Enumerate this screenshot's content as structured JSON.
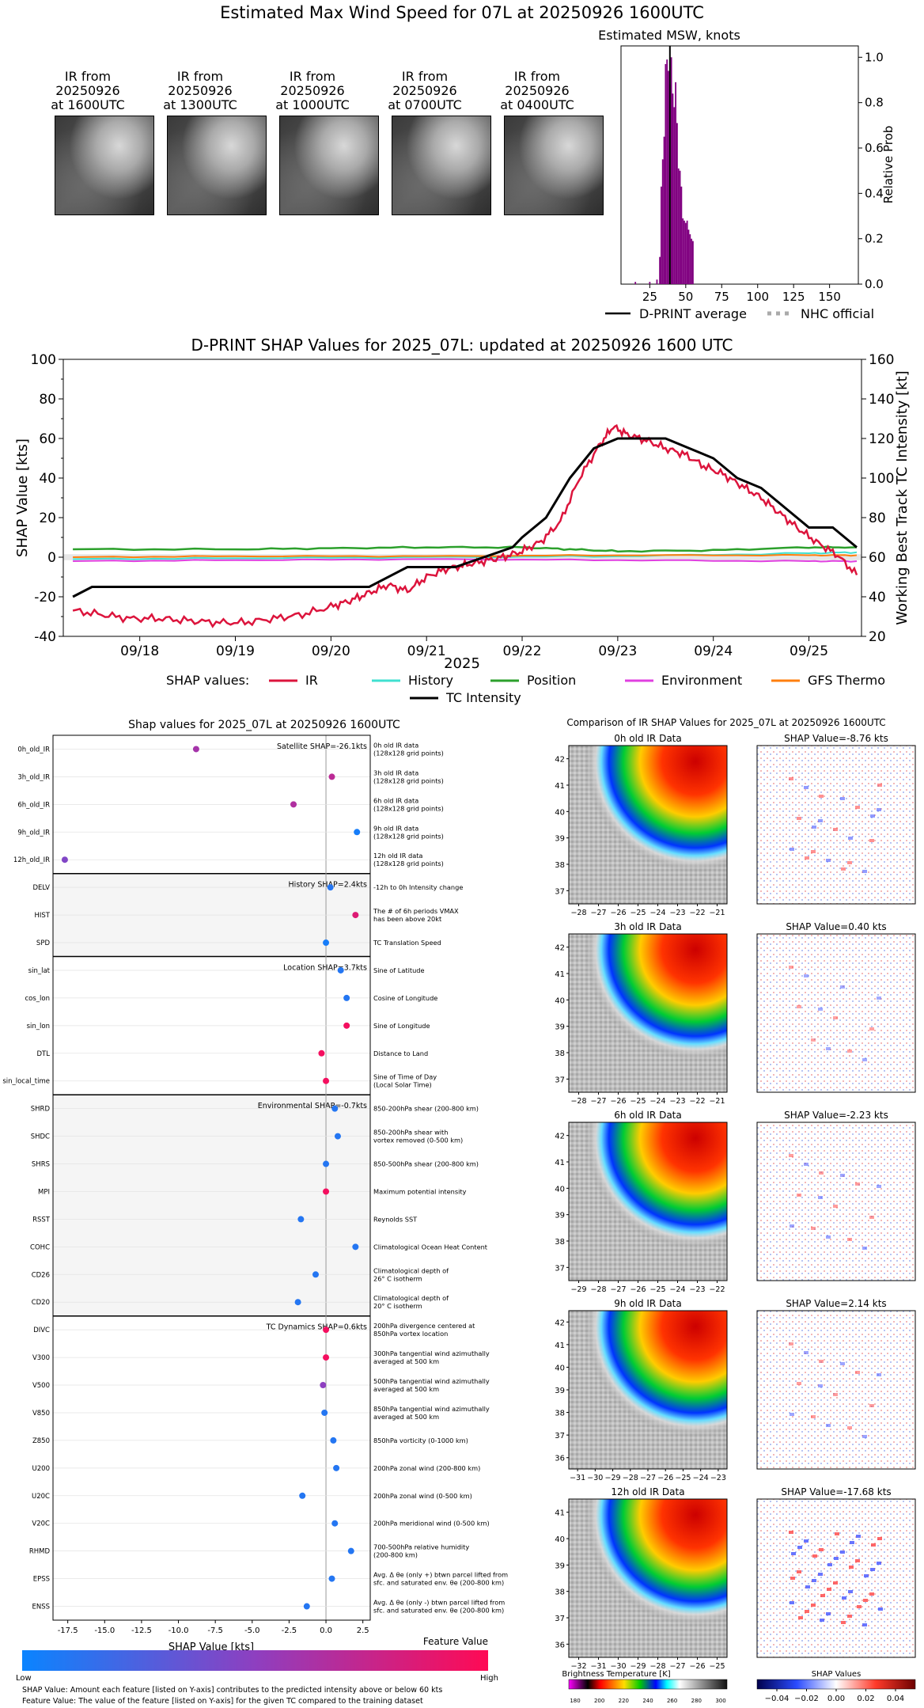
{
  "main_title": "Estimated Max Wind Speed for 07L at 20250926 1600UTC",
  "ir_thumbnails": [
    {
      "line1": "IR from",
      "line2": "20250926",
      "line3": "at 1600UTC"
    },
    {
      "line1": "IR from",
      "line2": "20250926",
      "line3": "at 1300UTC"
    },
    {
      "line1": "IR from",
      "line2": "20250926",
      "line3": "at 1000UTC"
    },
    {
      "line1": "IR from",
      "line2": "20250926",
      "line3": "at 0700UTC"
    },
    {
      "line1": "IR from",
      "line2": "20250926",
      "line3": "at 0400UTC"
    }
  ],
  "colors": {
    "ir": "#dc143c",
    "history": "#40e0d0",
    "position": "#2ca02c",
    "environment": "#e040e0",
    "gfs_thermo": "#ff7f0e",
    "tc_intensity": "#000000",
    "histogram": "#800080",
    "low_end": "#0a84ff",
    "high_end": "#ff0a54",
    "panel_shade": "#f5f5f5"
  },
  "chart_data": [
    {
      "type": "bar",
      "title": "Estimated MSW, knots",
      "ylabel": "Relative Prob",
      "xticks": [
        "25",
        "50",
        "75",
        "100",
        "125",
        "150"
      ],
      "yticks": [
        "0.0",
        "0.2",
        "0.4",
        "0.6",
        "0.8",
        "1.0"
      ],
      "xlim": [
        5,
        170
      ],
      "ylim": [
        0,
        1.05
      ],
      "bins": [
        {
          "x": 15,
          "v": 0.01
        },
        {
          "x": 25,
          "v": 0.01
        },
        {
          "x": 30,
          "v": 0.02
        },
        {
          "x": 32,
          "v": 0.12
        },
        {
          "x": 33,
          "v": 0.43
        },
        {
          "x": 34,
          "v": 0.55
        },
        {
          "x": 35,
          "v": 0.65
        },
        {
          "x": 36,
          "v": 0.97
        },
        {
          "x": 37,
          "v": 0.99
        },
        {
          "x": 38,
          "v": 0.94
        },
        {
          "x": 39,
          "v": 0.88
        },
        {
          "x": 40,
          "v": 1.0
        },
        {
          "x": 41,
          "v": 0.84
        },
        {
          "x": 42,
          "v": 0.78
        },
        {
          "x": 43,
          "v": 0.89
        },
        {
          "x": 44,
          "v": 0.71
        },
        {
          "x": 45,
          "v": 0.51
        },
        {
          "x": 46,
          "v": 0.5
        },
        {
          "x": 47,
          "v": 0.43
        },
        {
          "x": 48,
          "v": 0.29
        },
        {
          "x": 49,
          "v": 0.28
        },
        {
          "x": 50,
          "v": 0.27
        },
        {
          "x": 51,
          "v": 0.28
        },
        {
          "x": 52,
          "v": 0.24
        },
        {
          "x": 53,
          "v": 0.22
        },
        {
          "x": 54,
          "v": 0.2
        },
        {
          "x": 55,
          "v": 0.19
        }
      ],
      "dprint_average": 39,
      "legend": [
        {
          "label": "D-PRINT average",
          "style": "solid"
        },
        {
          "label": "NHC official",
          "style": "dotted"
        }
      ]
    },
    {
      "type": "line",
      "title": "D-PRINT SHAP Values for 2025_07L: updated at 20250926 1600 UTC",
      "ylabel": "SHAP Value [kts]",
      "y2label": "Working Best Track TC Intensity [kt]",
      "xlabel": "2025",
      "xticks": [
        "09/18",
        "09/19",
        "09/20",
        "09/21",
        "09/22",
        "09/23",
        "09/24",
        "09/25"
      ],
      "yticks": [
        "-40",
        "-20",
        "0",
        "20",
        "40",
        "60",
        "80",
        "100"
      ],
      "y2ticks": [
        "20",
        "40",
        "60",
        "80",
        "100",
        "120",
        "140",
        "160"
      ],
      "xlim": [
        17.2,
        25.55
      ],
      "ylim": [
        -40,
        100
      ],
      "y2lim": [
        20,
        160
      ],
      "ir": [
        [
          17.3,
          -27
        ],
        [
          17.6,
          -29
        ],
        [
          17.9,
          -31
        ],
        [
          18.2,
          -31
        ],
        [
          18.5,
          -32
        ],
        [
          18.8,
          -33
        ],
        [
          19.1,
          -33
        ],
        [
          19.4,
          -31
        ],
        [
          19.7,
          -29
        ],
        [
          20.0,
          -25
        ],
        [
          20.2,
          -22
        ],
        [
          20.4,
          -18
        ],
        [
          20.6,
          -14
        ],
        [
          20.8,
          -17
        ],
        [
          21.0,
          -10
        ],
        [
          21.2,
          -6
        ],
        [
          21.4,
          -4
        ],
        [
          21.6,
          -2
        ],
        [
          21.8,
          0
        ],
        [
          22.0,
          3
        ],
        [
          22.2,
          8
        ],
        [
          22.4,
          18
        ],
        [
          22.6,
          40
        ],
        [
          22.8,
          56
        ],
        [
          22.95,
          66
        ],
        [
          23.1,
          62
        ],
        [
          23.3,
          59
        ],
        [
          23.5,
          55
        ],
        [
          23.7,
          52
        ],
        [
          23.9,
          46
        ],
        [
          24.1,
          42
        ],
        [
          24.3,
          36
        ],
        [
          24.5,
          30
        ],
        [
          24.7,
          22
        ],
        [
          24.9,
          14
        ],
        [
          25.1,
          7
        ],
        [
          25.3,
          1
        ],
        [
          25.5,
          -9
        ]
      ],
      "history": [
        [
          17.3,
          -1
        ],
        [
          19.0,
          -0.5
        ],
        [
          21.0,
          0
        ],
        [
          23.0,
          0.5
        ],
        [
          25.0,
          2
        ],
        [
          25.5,
          2.5
        ]
      ],
      "position": [
        [
          17.3,
          4
        ],
        [
          19.0,
          4
        ],
        [
          20.0,
          4.5
        ],
        [
          21.0,
          5
        ],
        [
          22.0,
          5
        ],
        [
          22.5,
          4
        ],
        [
          23.0,
          3
        ],
        [
          24.0,
          3.5
        ],
        [
          25.0,
          5
        ],
        [
          25.5,
          5
        ]
      ],
      "environment": [
        [
          17.3,
          -2
        ],
        [
          19.0,
          -1.5
        ],
        [
          21.0,
          -1
        ],
        [
          23.0,
          -1.5
        ],
        [
          25.0,
          -2
        ],
        [
          25.5,
          -2
        ]
      ],
      "gfs_thermo": [
        [
          17.3,
          0
        ],
        [
          19.0,
          0.5
        ],
        [
          21.0,
          0.5
        ],
        [
          23.0,
          1
        ],
        [
          25.0,
          1
        ],
        [
          25.5,
          1
        ]
      ],
      "tc_intensity": [
        [
          17.3,
          40
        ],
        [
          17.5,
          45
        ],
        [
          20.4,
          45
        ],
        [
          20.8,
          55
        ],
        [
          21.3,
          55
        ],
        [
          21.6,
          60
        ],
        [
          21.9,
          65
        ],
        [
          22.0,
          70
        ],
        [
          22.25,
          80
        ],
        [
          22.5,
          100
        ],
        [
          22.75,
          115
        ],
        [
          23.0,
          120
        ],
        [
          23.5,
          120
        ],
        [
          23.75,
          115
        ],
        [
          24.0,
          110
        ],
        [
          24.25,
          100
        ],
        [
          24.5,
          95
        ],
        [
          24.75,
          85
        ],
        [
          25.0,
          75
        ],
        [
          25.25,
          75
        ],
        [
          25.5,
          65
        ]
      ],
      "legend_title": "SHAP values:",
      "legend": [
        "IR",
        "History",
        "Position",
        "Environment",
        "GFS Thermo",
        "TC Intensity"
      ]
    },
    {
      "type": "scatter",
      "title": "Shap values for 2025_07L at 20250926 1600UTC",
      "xlabel": "SHAP Value [kts]",
      "xticks": [
        "-17.5",
        "-15.0",
        "-12.5",
        "-10.0",
        "-7.5",
        "-5.0",
        "-2.5",
        "0.0",
        "2.5"
      ],
      "xlim": [
        -18.5,
        3.0
      ],
      "group_labels": [
        "Satellite SHAP=-26.1kts",
        "History SHAP=2.4kts",
        "Location SHAP=3.7kts",
        "Environmental SHAP=-0.7kts",
        "TC Dynamics SHAP=0.6kts"
      ],
      "features": [
        {
          "name": "0h_old_IR",
          "desc": "0h old IR data\n(128x128 grid points)",
          "x": -8.8,
          "f": 0.6,
          "g": 0
        },
        {
          "name": "3h_old_IR",
          "desc": "3h old IR data\n(128x128 grid points)",
          "x": 0.4,
          "f": 0.7,
          "g": 0
        },
        {
          "name": "6h_old_IR",
          "desc": "6h old IR data\n(128x128 grid points)",
          "x": -2.2,
          "f": 0.65,
          "g": 0
        },
        {
          "name": "9h_old_IR",
          "desc": "9h old IR data\n(128x128 grid points)",
          "x": 2.1,
          "f": 0.05,
          "g": 0
        },
        {
          "name": "12h_old_IR",
          "desc": "12h old IR data\n(128x128 grid points)",
          "x": -17.7,
          "f": 0.45,
          "g": 0
        },
        {
          "name": "DELV",
          "desc": "-12h to 0h Intensity change",
          "x": 0.3,
          "f": 0.1,
          "g": 1
        },
        {
          "name": "HIST",
          "desc": "The # of 6h periods VMAX\nhas been above 20kt",
          "x": 2.0,
          "f": 0.85,
          "g": 1
        },
        {
          "name": "SPD",
          "desc": "TC Translation Speed",
          "x": 0.0,
          "f": 0.05,
          "g": 1
        },
        {
          "name": "sin_lat",
          "desc": "Sine of Latitude",
          "x": 1.0,
          "f": 0.1,
          "g": 2
        },
        {
          "name": "cos_lon",
          "desc": "Cosine of Longitude",
          "x": 1.4,
          "f": 0.1,
          "g": 2
        },
        {
          "name": "sin_lon",
          "desc": "Sine of Longitude",
          "x": 1.4,
          "f": 0.95,
          "g": 2
        },
        {
          "name": "DTL",
          "desc": "Distance to Land",
          "x": -0.3,
          "f": 0.95,
          "g": 2
        },
        {
          "name": "sin_local_time",
          "desc": "Sine of Time of Day\n(Local Solar Time)",
          "x": 0.0,
          "f": 0.95,
          "g": 2
        },
        {
          "name": "SHRD",
          "desc": "850-200hPa shear (200-800 km)",
          "x": 0.6,
          "f": 0.1,
          "g": 3
        },
        {
          "name": "SHDC",
          "desc": "850-200hPa shear with\nvortex removed (0-500 km)",
          "x": 0.8,
          "f": 0.1,
          "g": 3
        },
        {
          "name": "SHRS",
          "desc": "850-500hPa shear (200-800 km)",
          "x": 0.0,
          "f": 0.1,
          "g": 3
        },
        {
          "name": "MPI",
          "desc": "Maximum potential intensity",
          "x": 0.0,
          "f": 0.95,
          "g": 3
        },
        {
          "name": "RSST",
          "desc": "Reynolds SST",
          "x": -1.7,
          "f": 0.1,
          "g": 3
        },
        {
          "name": "COHC",
          "desc": "Climatological Ocean Heat Content",
          "x": 2.0,
          "f": 0.1,
          "g": 3
        },
        {
          "name": "CD26",
          "desc": "Climatological depth of\n26° C isotherm",
          "x": -0.7,
          "f": 0.1,
          "g": 3
        },
        {
          "name": "CD20",
          "desc": "Climatological depth of\n20° C isotherm",
          "x": -1.9,
          "f": 0.1,
          "g": 3
        },
        {
          "name": "DIVC",
          "desc": "200hPa divergence centered at\n850hPa vortex location",
          "x": 0.0,
          "f": 0.95,
          "g": 4
        },
        {
          "name": "V300",
          "desc": "300hPa tangential wind azimuthally\naveraged at 500 km",
          "x": 0.0,
          "f": 0.95,
          "g": 4
        },
        {
          "name": "V500",
          "desc": "500hPa tangential wind azimuthally\naveraged at 500 km",
          "x": -0.2,
          "f": 0.5,
          "g": 4
        },
        {
          "name": "V850",
          "desc": "850hPa tangential wind azimuthally\naveraged at 500 km",
          "x": -0.1,
          "f": 0.1,
          "g": 4
        },
        {
          "name": "Z850",
          "desc": "850hPa vorticity (0-1000 km)",
          "x": 0.5,
          "f": 0.1,
          "g": 4
        },
        {
          "name": "U200",
          "desc": "200hPa zonal wind (200-800 km)",
          "x": 0.7,
          "f": 0.1,
          "g": 4
        },
        {
          "name": "U20C",
          "desc": "200hPa zonal wind (0-500 km)",
          "x": -1.6,
          "f": 0.1,
          "g": 4
        },
        {
          "name": "V20C",
          "desc": "200hPa meridional wind (0-500 km)",
          "x": 0.6,
          "f": 0.1,
          "g": 4
        },
        {
          "name": "RHMD",
          "desc": "700-500hPa relative humidity\n(200-800 km)",
          "x": 1.7,
          "f": 0.1,
          "g": 4
        },
        {
          "name": "EPSS",
          "desc": "Avg. Δ θe (only +) btwn parcel lifted from\nsfc. and saturated env. θe (200-800 km)",
          "x": 0.4,
          "f": 0.1,
          "g": 4
        },
        {
          "name": "ENSS",
          "desc": "Avg. Δ θe (only -) btwn parcel lifted from\nsfc. and saturated env. θe (200-800 km)",
          "x": -1.3,
          "f": 0.1,
          "g": 4
        }
      ]
    }
  ],
  "feature_colorbar": {
    "title": "Feature Value",
    "low": "Low",
    "high": "High"
  },
  "footnotes": [
    "SHAP Value: Amount each feature [listed on Y-axis] contributes to the predicted intensity above or below 60 kts",
    "Feature Value: The value of the feature [listed on Y-axis] for the given TC compared to the training dataset"
  ],
  "comparison": {
    "title": "Comparison of IR SHAP Values for 2025_07L at 20250926 1600UTC",
    "panels": [
      {
        "ir_title": "0h old IR Data",
        "shap_title": "SHAP Value=-8.76 kts",
        "yticks": [
          "42",
          "41",
          "40",
          "39",
          "38",
          "37"
        ],
        "xticks": [
          "−28",
          "−27",
          "−26",
          "−25",
          "−24",
          "−23",
          "−22",
          "−21"
        ],
        "intensity": 0.35
      },
      {
        "ir_title": "3h old IR Data",
        "shap_title": "SHAP Value=0.40 kts",
        "yticks": [
          "42",
          "41",
          "40",
          "39",
          "38",
          "37"
        ],
        "xticks": [
          "−28",
          "−27",
          "−26",
          "−25",
          "−24",
          "−23",
          "−22",
          "−21"
        ],
        "intensity": 0.2
      },
      {
        "ir_title": "6h old IR Data",
        "shap_title": "SHAP Value=-2.23 kts",
        "yticks": [
          "42",
          "41",
          "40",
          "39",
          "38",
          "37"
        ],
        "xticks": [
          "−29",
          "−28",
          "−27",
          "−26",
          "−25",
          "−24",
          "−23",
          "−22"
        ],
        "intensity": 0.25
      },
      {
        "ir_title": "9h old IR Data",
        "shap_title": "SHAP Value=2.14 kts",
        "yticks": [
          "42",
          "41",
          "40",
          "39",
          "38",
          "37",
          "36"
        ],
        "xticks": [
          "−31",
          "−30",
          "−29",
          "−28",
          "−27",
          "−26",
          "−25",
          "−24",
          "−23"
        ],
        "intensity": 0.25
      },
      {
        "ir_title": "12h old IR Data",
        "shap_title": "SHAP Value=-17.68 kts",
        "yticks": [
          "41",
          "40",
          "39",
          "38",
          "37",
          "36"
        ],
        "xticks": [
          "−32",
          "−31",
          "−30",
          "−29",
          "−28",
          "−27",
          "−26",
          "−25"
        ],
        "intensity": 0.7
      }
    ],
    "bt_colorbar": {
      "title": "Brightness Temperature [K]",
      "ticks": [
        "180",
        "200",
        "220",
        "240",
        "260",
        "280",
        "300"
      ]
    },
    "shap_colorbar": {
      "title": "SHAP Values",
      "ticks": [
        "−0.04",
        "−0.02",
        "0.00",
        "0.02",
        "0.04"
      ]
    }
  }
}
